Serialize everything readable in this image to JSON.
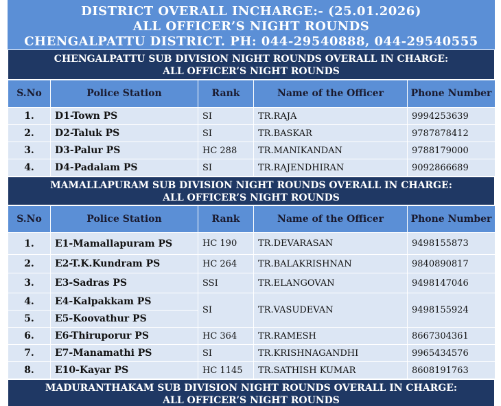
{
  "banner": {
    "line1": "DISTRICT OVERALL INCHARGE:- (25.01.2026)",
    "line2": "ALL OFFICER’S NIGHT ROUNDS",
    "line3": "CHENGALPATTU DISTRICT. PH: 044-29540888, 044-29540555"
  },
  "columns": {
    "sno": "S.No",
    "station": "Police Station",
    "rank": "Rank",
    "officer": "Name of the Officer",
    "phone": "Phone Number"
  },
  "section1": {
    "line1": "CHENGALPATTU SUB DIVISION NIGHT ROUNDS OVERALL IN CHARGE:",
    "line2": "ALL OFFICER’S NIGHT ROUNDS",
    "rows": [
      {
        "sno": "1.",
        "station": "D1-Town PS",
        "rank": "SI",
        "officer": "TR.RAJA",
        "phone": "9994253639"
      },
      {
        "sno": "2.",
        "station": "D2-Taluk PS",
        "rank": "SI",
        "officer": "TR.BASKAR",
        "phone": "9787878412"
      },
      {
        "sno": "3.",
        "station": "D3-Palur PS",
        "rank": "HC 288",
        "officer": "TR.MANIKANDAN",
        "phone": "9788179000"
      },
      {
        "sno": "4.",
        "station": "D4-Padalam PS",
        "rank": "SI",
        "officer": "TR.RAJENDHIRAN",
        "phone": "9092866689"
      }
    ]
  },
  "section2": {
    "line1": "MAMALLAPURAM SUB DIVISION NIGHT ROUNDS OVERALL IN CHARGE:",
    "line2": "ALL OFFICER’S NIGHT ROUNDS",
    "rows": [
      {
        "sno": "1.",
        "station": "E1-Mamallapuram PS",
        "rank": "HC 190",
        "officer": "TR.DEVARASAN",
        "phone": "9498155873"
      },
      {
        "sno": "2.",
        "station": "E2-T.K.Kundram PS",
        "rank": "HC 264",
        "officer": "TR.BALAKRISHNAN",
        "phone": "9840890817"
      },
      {
        "sno": "3.",
        "station": "E3-Sadras PS",
        "rank": "SSI",
        "officer": "TR.ELANGOVAN",
        "phone": "9498147046"
      },
      {
        "sno": "4.",
        "station": "E4-Kalpakkam PS",
        "rank": "SI",
        "officer": "TR.VASUDEVAN",
        "phone": "9498155924"
      },
      {
        "sno": "5.",
        "station": "E5-Koovathur PS"
      },
      {
        "sno": "6.",
        "station": "E6-Thiruporur PS",
        "rank": "HC 364",
        "officer": "TR.RAMESH",
        "phone": "8667304361"
      },
      {
        "sno": "7.",
        "station": "E7-Manamathi PS",
        "rank": "SI",
        "officer": "TR.KRISHNAGANDHI",
        "phone": "9965434576"
      },
      {
        "sno": "8.",
        "station": "E10-Kayar PS",
        "rank": "HC 1145",
        "officer": "TR.SATHISH KUMAR",
        "phone": "8608191763"
      }
    ]
  },
  "section3": {
    "line1": "MADURANTHAKAM SUB DIVISION NIGHT ROUNDS OVERALL IN CHARGE:",
    "line2": "ALL OFFICER’S NIGHT ROUNDS"
  }
}
